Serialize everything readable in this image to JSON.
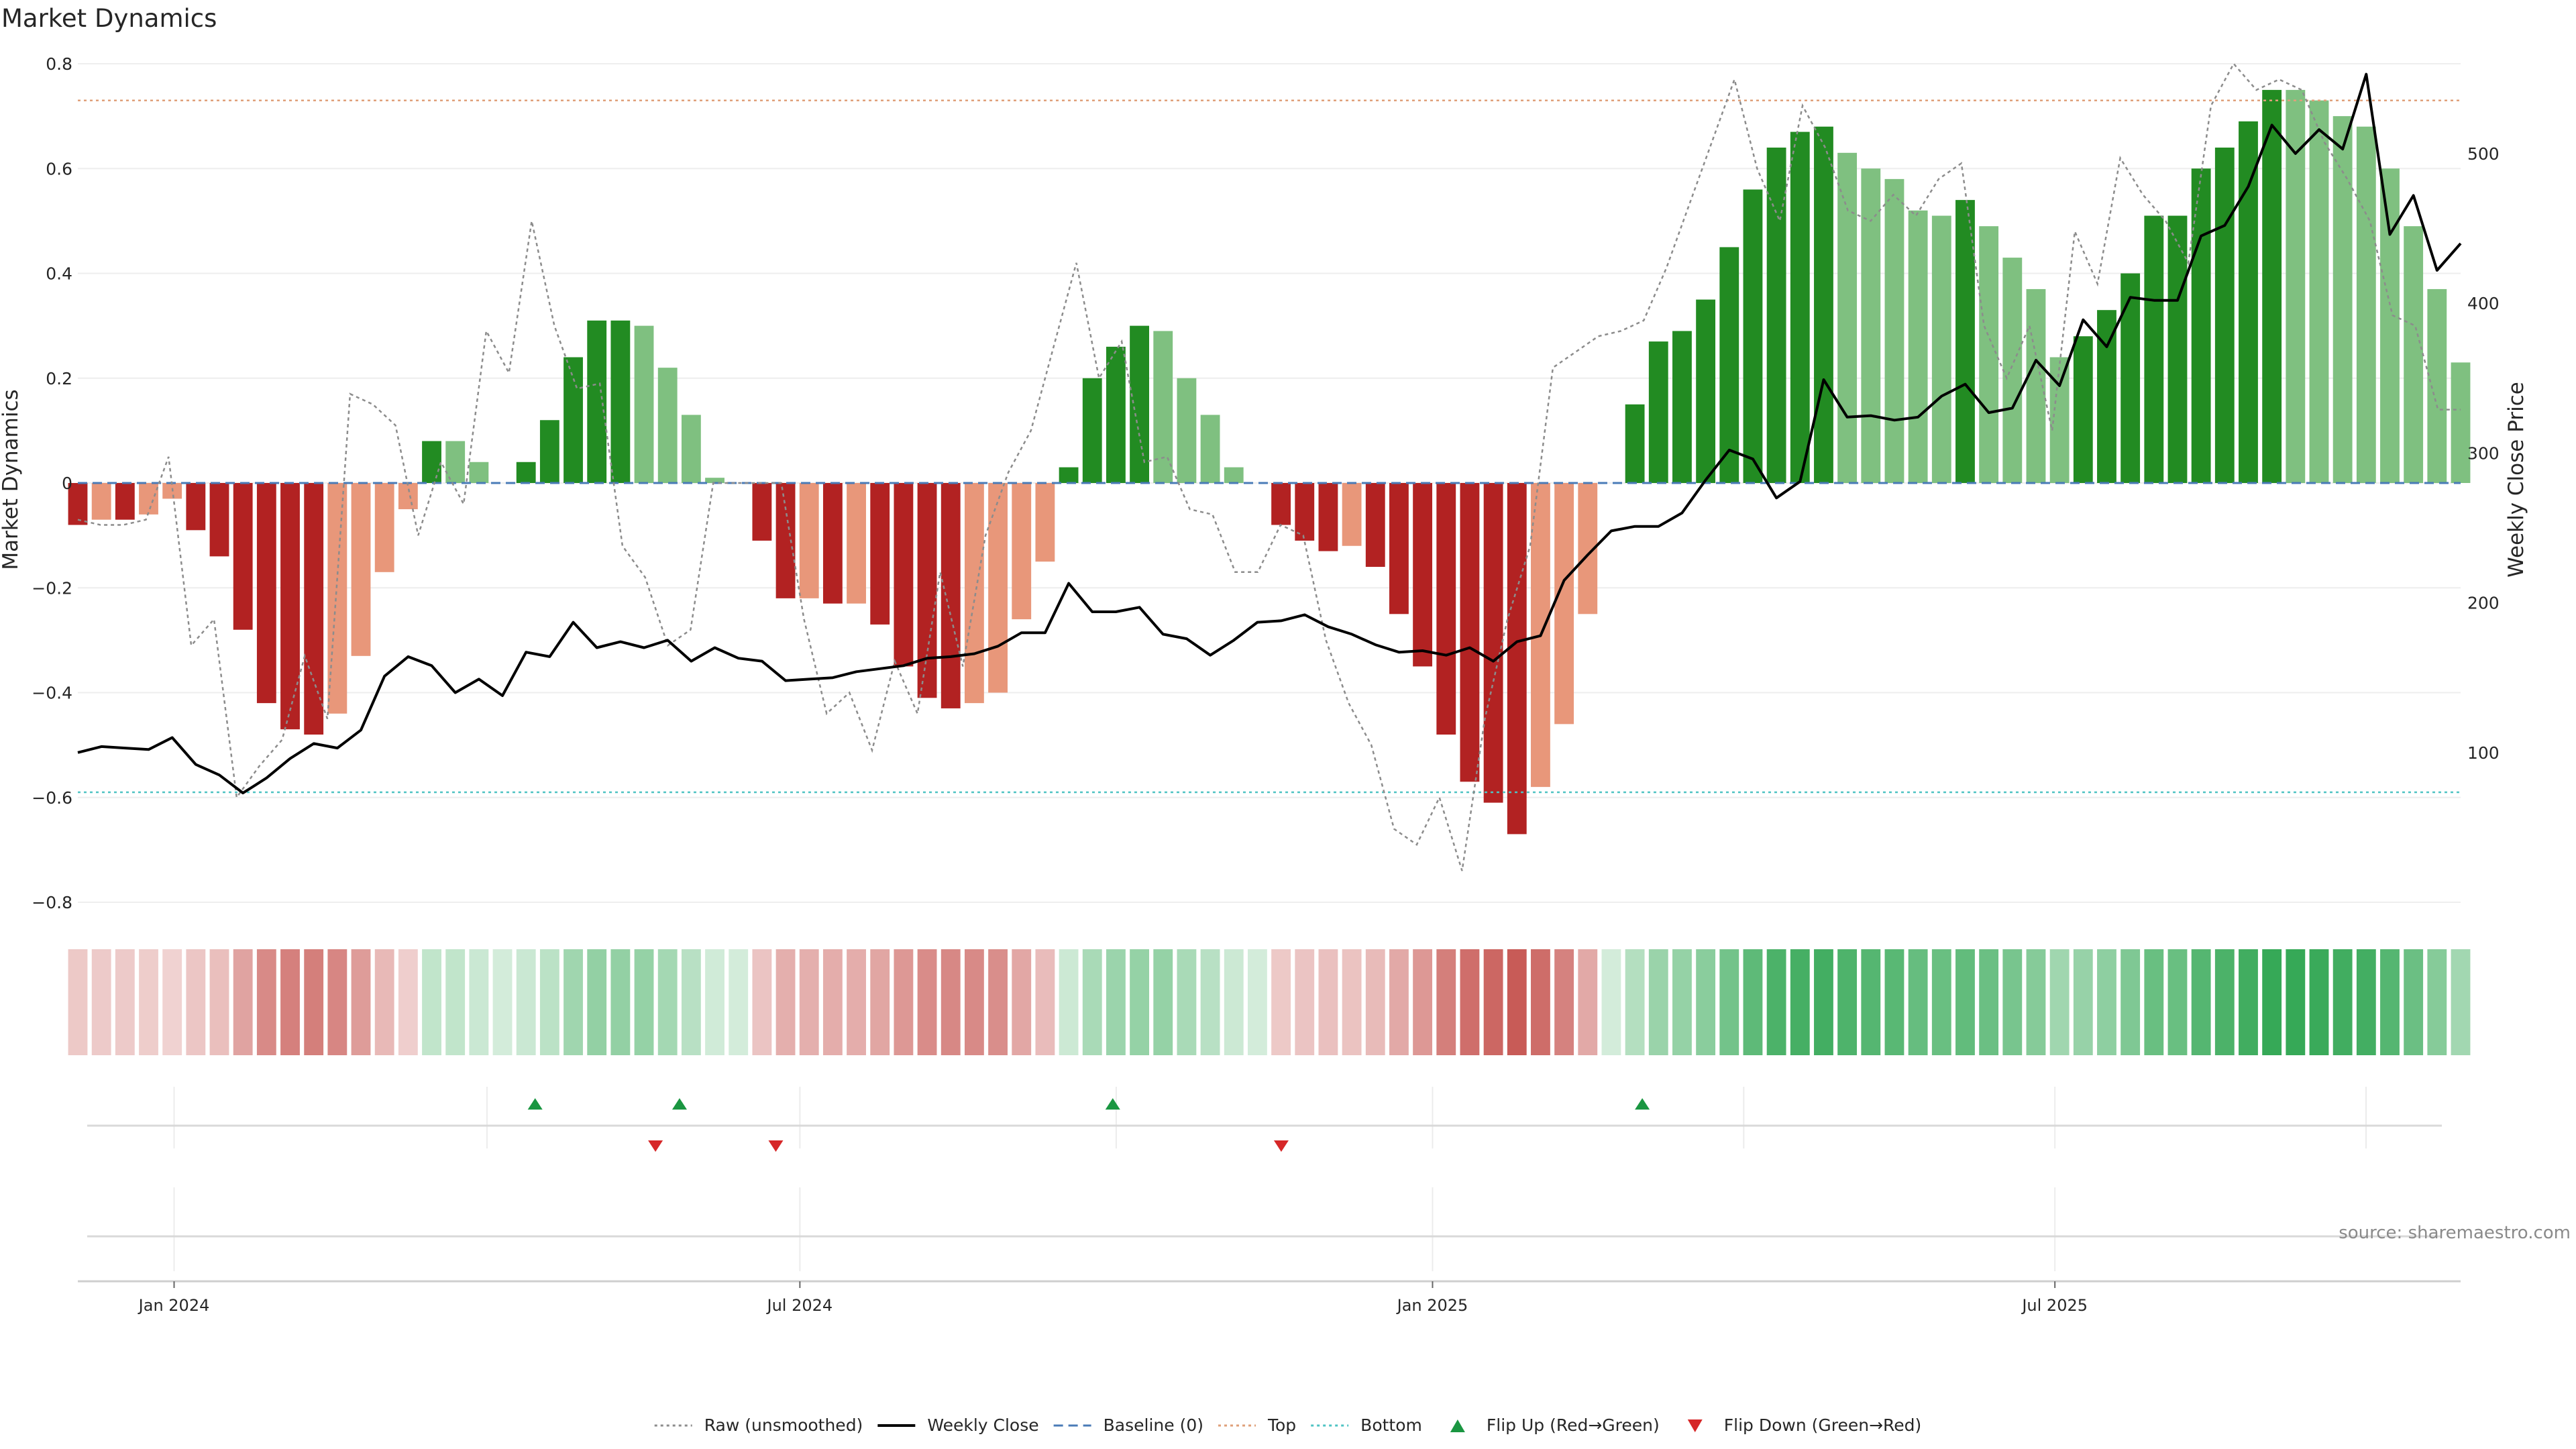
{
  "chart_data": {
    "type": "bar",
    "title": "Market Dynamics",
    "ylabel": "Market Dynamics",
    "y2label": "Weekly Close Price",
    "ylim": [
      -0.8,
      0.8
    ],
    "y2lim": [
      0,
      560
    ],
    "yticks": [
      "0.8",
      "0.6",
      "0.4",
      "0.2",
      "0",
      "−0.2",
      "−0.4",
      "−0.6",
      "−0.8"
    ],
    "yticks_values": [
      0.8,
      0.6,
      0.4,
      0.2,
      0,
      -0.2,
      -0.4,
      -0.6,
      -0.8
    ],
    "y2ticks": [
      "100",
      "200",
      "300",
      "400",
      "500"
    ],
    "y2ticks_values": [
      100,
      200,
      300,
      400,
      500
    ],
    "x_start": "2023-12-04",
    "x_end": "2025-10-27",
    "date_ticks": [
      {
        "date": "2024-01-01",
        "label": "Jan 2024"
      },
      {
        "date": "2024-07-01",
        "label": "Jul 2024"
      },
      {
        "date": "2025-01-01",
        "label": "Jan 2025"
      },
      {
        "date": "2025-07-01",
        "label": "Jul 2025"
      }
    ],
    "top_level": 0.73,
    "bottom_level": -0.59,
    "grid": true,
    "legend_position": "bottom-center",
    "colors": {
      "up_strong": "#228b22",
      "up_weak": "#7fc080",
      "down_strong": "#b22222",
      "down_weak": "#e8977a",
      "raw": "#8c8c8c",
      "close": "#000000",
      "baseline": "#4a7bb7",
      "top": "#e0a07a",
      "bottom": "#4fc3c3",
      "flip_up": "#1a9641",
      "flip_down": "#d62728"
    },
    "series": [
      {
        "name": "Raw (unsmoothed)",
        "values": [
          -0.07,
          -0.08,
          -0.08,
          -0.07,
          0.05,
          -0.31,
          -0.26,
          -0.6,
          -0.54,
          -0.49,
          -0.33,
          -0.45,
          0.17,
          0.15,
          0.11,
          -0.1,
          0.04,
          -0.04,
          0.29,
          0.21,
          0.5,
          0.3,
          0.18,
          0.19,
          -0.12,
          -0.18,
          -0.31,
          -0.28,
          0.0,
          0.0,
          0.0,
          0.0,
          -0.26,
          -0.44,
          -0.4,
          -0.51,
          -0.34,
          -0.44,
          -0.17,
          -0.35,
          -0.1,
          0.02,
          0.1,
          0.26,
          0.42,
          0.2,
          0.27,
          0.04,
          0.05,
          -0.05,
          -0.06,
          -0.17,
          -0.17,
          -0.08,
          -0.1,
          -0.3,
          -0.42,
          -0.5,
          -0.66,
          -0.69,
          -0.6,
          -0.74,
          -0.45,
          -0.26,
          -0.12,
          0.22,
          0.25,
          0.28,
          0.29,
          0.31,
          0.41,
          0.53,
          0.65,
          0.77,
          0.6,
          0.5,
          0.72,
          0.64,
          0.52,
          0.5,
          0.55,
          0.51,
          0.58,
          0.61,
          0.3,
          0.2,
          0.3,
          0.1,
          0.48,
          0.38,
          0.62,
          0.55,
          0.5,
          0.42,
          0.72,
          0.8,
          0.75,
          0.77,
          0.75,
          0.65,
          0.58,
          0.5,
          0.32,
          0.3,
          0.14,
          0.14
        ]
      },
      {
        "name": "Weekly Close",
        "values": [
          100,
          104,
          103,
          102,
          110,
          92,
          85,
          73,
          83,
          96,
          106,
          103,
          115,
          151,
          164,
          158,
          140,
          149,
          138,
          167,
          164,
          187,
          170,
          174,
          170,
          175,
          161,
          170,
          163,
          161,
          148,
          149,
          150,
          154,
          156,
          158,
          163,
          164,
          166,
          171,
          180,
          180,
          213,
          194,
          194,
          197,
          179,
          176,
          165,
          175,
          187,
          188,
          192,
          184,
          179,
          172,
          167,
          168,
          165,
          170,
          161,
          174,
          178,
          215,
          232,
          248,
          251,
          251,
          260,
          282,
          302,
          296,
          270,
          281,
          349,
          324,
          325,
          322,
          324,
          338,
          346,
          327,
          330,
          362,
          345,
          389,
          371,
          404,
          402,
          402,
          445,
          452,
          478,
          519,
          500,
          516,
          503,
          553,
          446,
          472,
          422,
          440
        ]
      },
      {
        "name": "Baseline (0)",
        "values": [
          0
        ]
      },
      {
        "name": "Top",
        "values": [
          0.73
        ]
      },
      {
        "name": "Bottom",
        "values": [
          -0.59
        ]
      }
    ],
    "bars": [
      {
        "v": -0.08,
        "s": 1
      },
      {
        "v": -0.07,
        "s": 0
      },
      {
        "v": -0.07,
        "s": 1
      },
      {
        "v": -0.06,
        "s": 0
      },
      {
        "v": -0.03,
        "s": 0
      },
      {
        "v": -0.09,
        "s": 1
      },
      {
        "v": -0.14,
        "s": 1
      },
      {
        "v": -0.28,
        "s": 1
      },
      {
        "v": -0.42,
        "s": 1
      },
      {
        "v": -0.47,
        "s": 1
      },
      {
        "v": -0.48,
        "s": 1
      },
      {
        "v": -0.44,
        "s": 0
      },
      {
        "v": -0.33,
        "s": 0
      },
      {
        "v": -0.17,
        "s": 0
      },
      {
        "v": -0.05,
        "s": 0
      },
      {
        "v": 0.08,
        "s": 1
      },
      {
        "v": 0.08,
        "s": 0
      },
      {
        "v": 0.04,
        "s": 0
      },
      {
        "v": 0.0,
        "s": 0
      },
      {
        "v": 0.04,
        "s": 1
      },
      {
        "v": 0.12,
        "s": 1
      },
      {
        "v": 0.24,
        "s": 1
      },
      {
        "v": 0.31,
        "s": 1
      },
      {
        "v": 0.31,
        "s": 1
      },
      {
        "v": 0.3,
        "s": 0
      },
      {
        "v": 0.22,
        "s": 0
      },
      {
        "v": 0.13,
        "s": 0
      },
      {
        "v": 0.01,
        "s": 0
      },
      {
        "v": 0.0,
        "s": 0
      },
      {
        "v": -0.11,
        "s": 1
      },
      {
        "v": -0.22,
        "s": 1
      },
      {
        "v": -0.22,
        "s": 0
      },
      {
        "v": -0.23,
        "s": 1
      },
      {
        "v": -0.23,
        "s": 0
      },
      {
        "v": -0.27,
        "s": 1
      },
      {
        "v": -0.35,
        "s": 1
      },
      {
        "v": -0.41,
        "s": 1
      },
      {
        "v": -0.43,
        "s": 1
      },
      {
        "v": -0.42,
        "s": 0
      },
      {
        "v": -0.4,
        "s": 0
      },
      {
        "v": -0.26,
        "s": 0
      },
      {
        "v": -0.15,
        "s": 0
      },
      {
        "v": 0.03,
        "s": 1
      },
      {
        "v": 0.2,
        "s": 1
      },
      {
        "v": 0.26,
        "s": 1
      },
      {
        "v": 0.3,
        "s": 1
      },
      {
        "v": 0.29,
        "s": 0
      },
      {
        "v": 0.2,
        "s": 0
      },
      {
        "v": 0.13,
        "s": 0
      },
      {
        "v": 0.03,
        "s": 0
      },
      {
        "v": 0.0,
        "s": 0
      },
      {
        "v": -0.08,
        "s": 1
      },
      {
        "v": -0.11,
        "s": 1
      },
      {
        "v": -0.13,
        "s": 1
      },
      {
        "v": -0.12,
        "s": 0
      },
      {
        "v": -0.16,
        "s": 1
      },
      {
        "v": -0.25,
        "s": 1
      },
      {
        "v": -0.35,
        "s": 1
      },
      {
        "v": -0.48,
        "s": 1
      },
      {
        "v": -0.57,
        "s": 1
      },
      {
        "v": -0.61,
        "s": 1
      },
      {
        "v": -0.67,
        "s": 1
      },
      {
        "v": -0.58,
        "s": 0
      },
      {
        "v": -0.46,
        "s": 0
      },
      {
        "v": -0.25,
        "s": 0
      },
      {
        "v": 0.0,
        "s": 0
      },
      {
        "v": 0.15,
        "s": 1
      },
      {
        "v": 0.27,
        "s": 1
      },
      {
        "v": 0.29,
        "s": 1
      },
      {
        "v": 0.35,
        "s": 1
      },
      {
        "v": 0.45,
        "s": 1
      },
      {
        "v": 0.56,
        "s": 1
      },
      {
        "v": 0.64,
        "s": 1
      },
      {
        "v": 0.67,
        "s": 1
      },
      {
        "v": 0.68,
        "s": 1
      },
      {
        "v": 0.63,
        "s": 0
      },
      {
        "v": 0.6,
        "s": 0
      },
      {
        "v": 0.58,
        "s": 0
      },
      {
        "v": 0.52,
        "s": 0
      },
      {
        "v": 0.51,
        "s": 0
      },
      {
        "v": 0.54,
        "s": 1
      },
      {
        "v": 0.49,
        "s": 0
      },
      {
        "v": 0.43,
        "s": 0
      },
      {
        "v": 0.37,
        "s": 0
      },
      {
        "v": 0.24,
        "s": 0
      },
      {
        "v": 0.28,
        "s": 1
      },
      {
        "v": 0.33,
        "s": 1
      },
      {
        "v": 0.4,
        "s": 1
      },
      {
        "v": 0.51,
        "s": 1
      },
      {
        "v": 0.51,
        "s": 1
      },
      {
        "v": 0.6,
        "s": 1
      },
      {
        "v": 0.64,
        "s": 1
      },
      {
        "v": 0.69,
        "s": 1
      },
      {
        "v": 0.75,
        "s": 1
      },
      {
        "v": 0.75,
        "s": 0
      },
      {
        "v": 0.73,
        "s": 0
      },
      {
        "v": 0.7,
        "s": 0
      },
      {
        "v": 0.68,
        "s": 0
      },
      {
        "v": 0.6,
        "s": 0
      },
      {
        "v": 0.49,
        "s": 0
      },
      {
        "v": 0.37,
        "s": 0
      },
      {
        "v": 0.23,
        "s": 0
      }
    ],
    "flip_up_dates": [
      "2024-04-15",
      "2024-05-27",
      "2024-09-30",
      "2025-03-03"
    ],
    "flip_down_dates": [
      "2024-05-20",
      "2024-06-24",
      "2024-11-18"
    ]
  },
  "source": "source: sharemaestro.com",
  "legend": [
    {
      "label": "Raw (unsmoothed)",
      "kind": "dotted",
      "color": "#8c8c8c"
    },
    {
      "label": "Weekly Close",
      "kind": "solid",
      "color": "#000000"
    },
    {
      "label": "Baseline (0)",
      "kind": "dashed",
      "color": "#4a7bb7"
    },
    {
      "label": "Top",
      "kind": "dotted",
      "color": "#e0a07a"
    },
    {
      "label": "Bottom",
      "kind": "dotted",
      "color": "#4fc3c3"
    },
    {
      "label": "Flip Up (Red→Green)",
      "kind": "tri-up",
      "color": "#1a9641"
    },
    {
      "label": "Flip Down (Green→Red)",
      "kind": "tri-down",
      "color": "#d62728"
    }
  ]
}
